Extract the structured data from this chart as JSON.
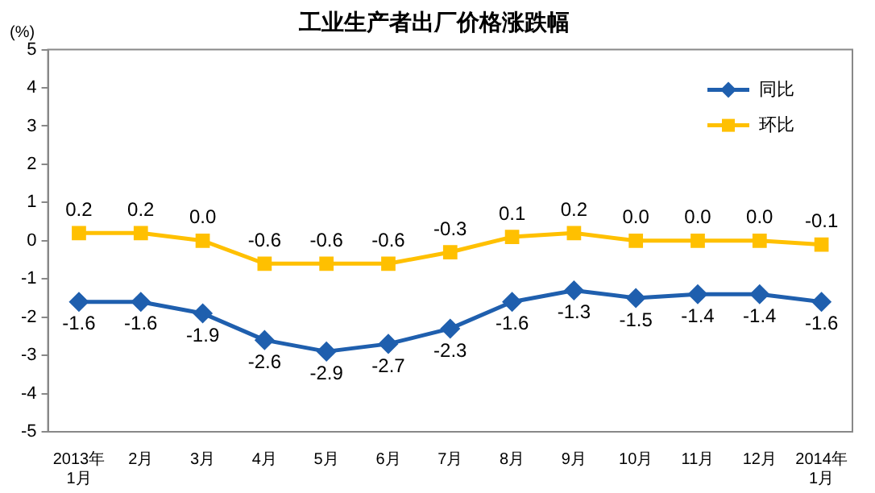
{
  "chart_data": {
    "type": "line",
    "title": "工业生产者出厂价格涨跌幅",
    "ylabel": "(%)",
    "categories": [
      "2013年\n1月",
      "2月",
      "3月",
      "4月",
      "5月",
      "6月",
      "7月",
      "8月",
      "9月",
      "10月",
      "11月",
      "12月",
      "2014年\n1月"
    ],
    "series": [
      {
        "name": "同比",
        "color": "#1f5fae",
        "marker": "diamond",
        "values": [
          -1.6,
          -1.6,
          -1.9,
          -2.6,
          -2.9,
          -2.7,
          -2.3,
          -1.6,
          -1.3,
          -1.5,
          -1.4,
          -1.4,
          -1.6
        ],
        "value_labels": [
          "-1.6",
          "-1.6",
          "-1.9",
          "-2.6",
          "-2.9",
          "-2.7",
          "-2.3",
          "-1.6",
          "-1.3",
          "-1.5",
          "-1.4",
          "-1.4",
          "-1.6"
        ]
      },
      {
        "name": "环比",
        "color": "#ffc000",
        "marker": "square",
        "values": [
          0.2,
          0.2,
          0.0,
          -0.6,
          -0.6,
          -0.6,
          -0.3,
          0.1,
          0.2,
          0.0,
          0.0,
          0.0,
          -0.1
        ],
        "value_labels": [
          "0.2",
          "0.2",
          "0.0",
          "-0.6",
          "-0.6",
          "-0.6",
          "-0.3",
          "0.1",
          "0.2",
          "0.0",
          "0.0",
          "0.0",
          "-0.1"
        ]
      }
    ],
    "ylim": [
      -5,
      5
    ],
    "yticks": [
      -5,
      -4,
      -3,
      -2,
      -1,
      0,
      1,
      2,
      3,
      4,
      5
    ],
    "grid": false,
    "legend": "top right",
    "line_style": "solid"
  }
}
